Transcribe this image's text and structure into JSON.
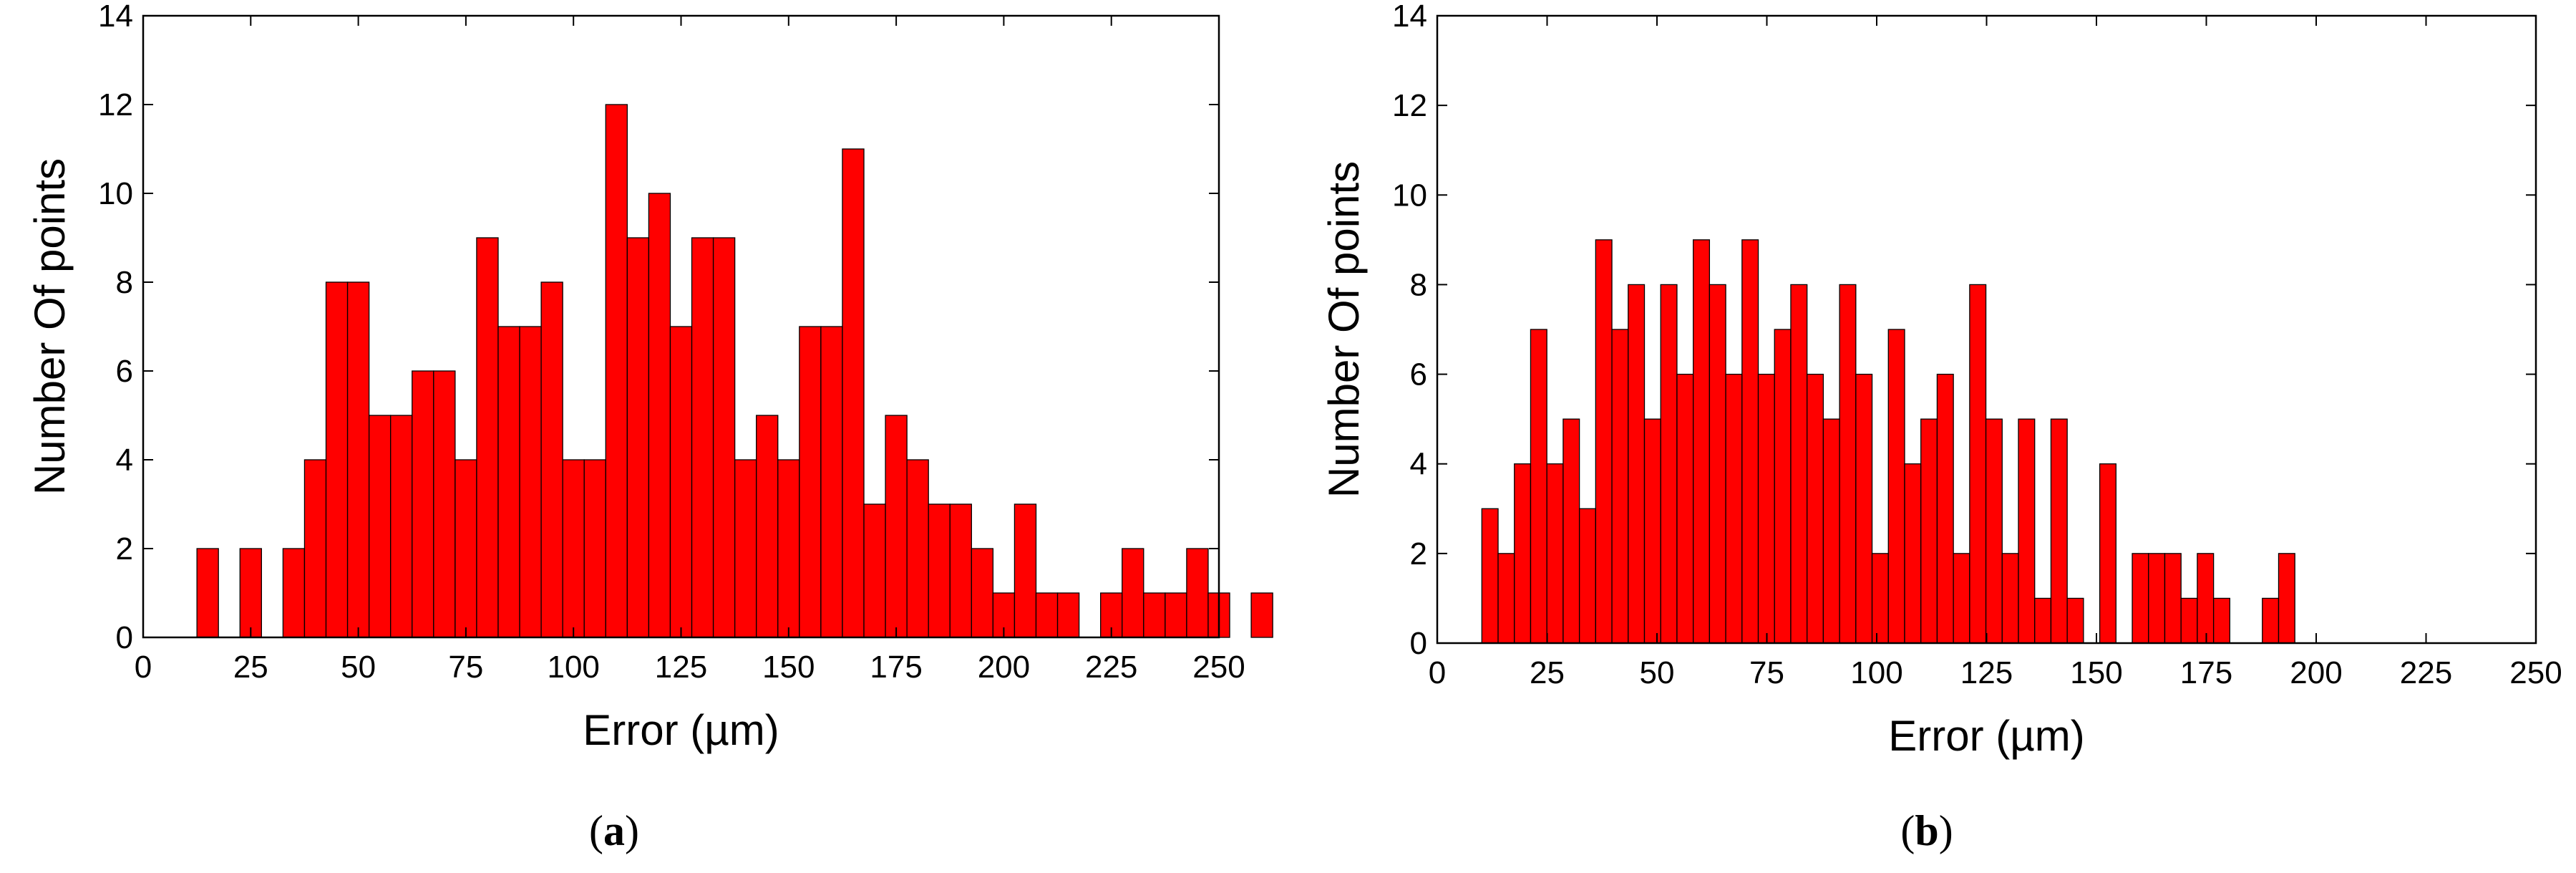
{
  "chart_data": [
    {
      "type": "bar",
      "panel": "(a)",
      "panel_parts": [
        "(",
        "a",
        ")"
      ],
      "xlabel": "Error (µm)",
      "ylabel": "Number Of points",
      "xlim": [
        0,
        250
      ],
      "ylim": [
        0,
        14
      ],
      "xticks": [
        "0",
        "25",
        "50",
        "75",
        "100",
        "125",
        "150",
        "175",
        "200",
        "225",
        "250"
      ],
      "yticks": [
        "0",
        "2",
        "4",
        "6",
        "8",
        "10",
        "12",
        "14"
      ],
      "bin_width": 5,
      "grid": false,
      "bar_color": "#ff0000",
      "bins": [
        {
          "x": 15,
          "count": 2
        },
        {
          "x": 20,
          "count": 0
        },
        {
          "x": 25,
          "count": 2
        },
        {
          "x": 30,
          "count": 0
        },
        {
          "x": 35,
          "count": 2
        },
        {
          "x": 40,
          "count": 4
        },
        {
          "x": 45,
          "count": 8
        },
        {
          "x": 50,
          "count": 8
        },
        {
          "x": 55,
          "count": 5
        },
        {
          "x": 60,
          "count": 5
        },
        {
          "x": 65,
          "count": 6
        },
        {
          "x": 70,
          "count": 6
        },
        {
          "x": 75,
          "count": 4
        },
        {
          "x": 80,
          "count": 9
        },
        {
          "x": 85,
          "count": 7
        },
        {
          "x": 90,
          "count": 7
        },
        {
          "x": 95,
          "count": 8
        },
        {
          "x": 100,
          "count": 4
        },
        {
          "x": 105,
          "count": 4
        },
        {
          "x": 110,
          "count": 12
        },
        {
          "x": 115,
          "count": 9
        },
        {
          "x": 120,
          "count": 10
        },
        {
          "x": 125,
          "count": 7
        },
        {
          "x": 130,
          "count": 9
        },
        {
          "x": 135,
          "count": 9
        },
        {
          "x": 140,
          "count": 4
        },
        {
          "x": 145,
          "count": 5
        },
        {
          "x": 150,
          "count": 4
        },
        {
          "x": 155,
          "count": 7
        },
        {
          "x": 160,
          "count": 7
        },
        {
          "x": 165,
          "count": 11
        },
        {
          "x": 170,
          "count": 3
        },
        {
          "x": 175,
          "count": 5
        },
        {
          "x": 180,
          "count": 4
        },
        {
          "x": 185,
          "count": 3
        },
        {
          "x": 190,
          "count": 3
        },
        {
          "x": 195,
          "count": 2
        },
        {
          "x": 200,
          "count": 1
        },
        {
          "x": 205,
          "count": 3
        },
        {
          "x": 210,
          "count": 1
        },
        {
          "x": 215,
          "count": 1
        },
        {
          "x": 220,
          "count": 0
        },
        {
          "x": 225,
          "count": 1
        },
        {
          "x": 230,
          "count": 2
        },
        {
          "x": 235,
          "count": 1
        },
        {
          "x": 240,
          "count": 1
        },
        {
          "x": 245,
          "count": 2
        },
        {
          "x": 250,
          "count": 1
        },
        {
          "x": 255,
          "count": 0
        },
        {
          "x": 260,
          "count": 1
        }
      ]
    },
    {
      "type": "bar",
      "panel": "(b)",
      "panel_parts": [
        "(",
        "b",
        ")"
      ],
      "xlabel": "Error (µm)",
      "ylabel": "Number Of points",
      "xlim": [
        0,
        250
      ],
      "ylim": [
        0,
        14
      ],
      "xticks": [
        "0",
        "25",
        "50",
        "75",
        "100",
        "125",
        "150",
        "175",
        "200",
        "225",
        "250"
      ],
      "yticks": [
        "0",
        "2",
        "4",
        "6",
        "8",
        "10",
        "12",
        "14"
      ],
      "bin_width": 3.7,
      "grid": false,
      "bar_color": "#ff0000",
      "bins": [
        {
          "x": 12,
          "count": 3
        },
        {
          "x": 15.7,
          "count": 2
        },
        {
          "x": 19.4,
          "count": 4
        },
        {
          "x": 23.1,
          "count": 7
        },
        {
          "x": 26.8,
          "count": 4
        },
        {
          "x": 30.5,
          "count": 5
        },
        {
          "x": 34.2,
          "count": 3
        },
        {
          "x": 37.9,
          "count": 9
        },
        {
          "x": 41.6,
          "count": 7
        },
        {
          "x": 45.3,
          "count": 8
        },
        {
          "x": 49.0,
          "count": 5
        },
        {
          "x": 52.7,
          "count": 8
        },
        {
          "x": 56.4,
          "count": 6
        },
        {
          "x": 60.1,
          "count": 9
        },
        {
          "x": 63.8,
          "count": 8
        },
        {
          "x": 67.5,
          "count": 6
        },
        {
          "x": 71.2,
          "count": 9
        },
        {
          "x": 74.9,
          "count": 6
        },
        {
          "x": 78.6,
          "count": 7
        },
        {
          "x": 82.3,
          "count": 8
        },
        {
          "x": 86.0,
          "count": 6
        },
        {
          "x": 89.7,
          "count": 5
        },
        {
          "x": 93.4,
          "count": 8
        },
        {
          "x": 97.1,
          "count": 6
        },
        {
          "x": 100.8,
          "count": 2
        },
        {
          "x": 104.5,
          "count": 7
        },
        {
          "x": 108.2,
          "count": 4
        },
        {
          "x": 111.9,
          "count": 5
        },
        {
          "x": 115.6,
          "count": 6
        },
        {
          "x": 119.3,
          "count": 2
        },
        {
          "x": 123.0,
          "count": 8
        },
        {
          "x": 126.7,
          "count": 5
        },
        {
          "x": 130.4,
          "count": 2
        },
        {
          "x": 134.1,
          "count": 5
        },
        {
          "x": 137.8,
          "count": 1
        },
        {
          "x": 141.5,
          "count": 5
        },
        {
          "x": 145.2,
          "count": 1
        },
        {
          "x": 148.9,
          "count": 0
        },
        {
          "x": 152.6,
          "count": 4
        },
        {
          "x": 156.3,
          "count": 0
        },
        {
          "x": 160.0,
          "count": 2
        },
        {
          "x": 163.7,
          "count": 2
        },
        {
          "x": 167.4,
          "count": 2
        },
        {
          "x": 171.1,
          "count": 1
        },
        {
          "x": 174.8,
          "count": 2
        },
        {
          "x": 178.5,
          "count": 1
        },
        {
          "x": 182.2,
          "count": 0
        },
        {
          "x": 185.9,
          "count": 0
        },
        {
          "x": 189.6,
          "count": 1
        },
        {
          "x": 193.3,
          "count": 2
        }
      ]
    }
  ]
}
